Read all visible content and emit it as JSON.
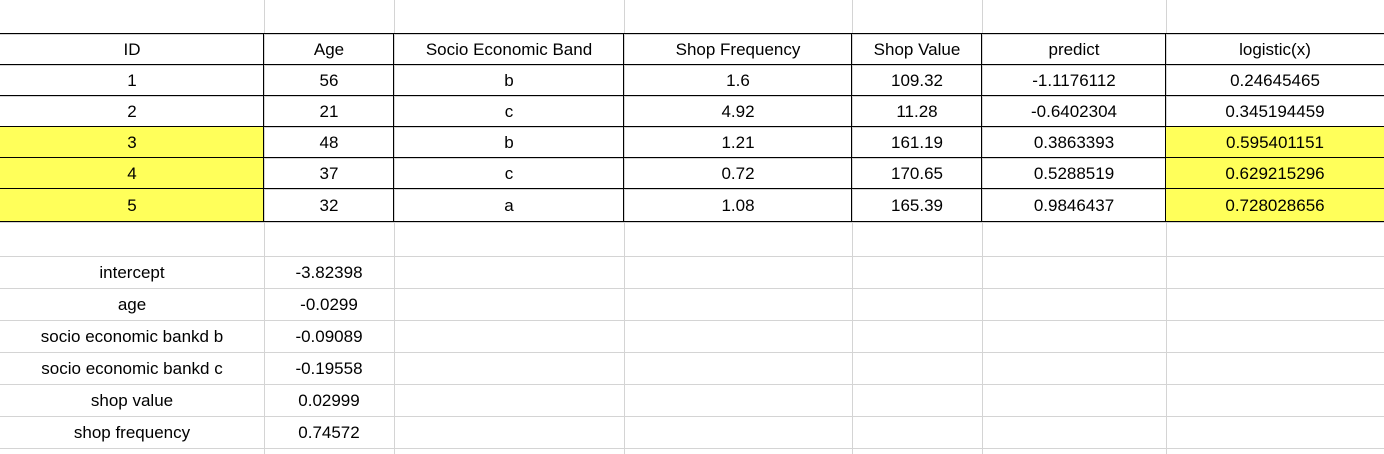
{
  "table": {
    "headers": [
      "ID",
      "Age",
      "Socio Economic Band",
      "Shop Frequency",
      "Shop Value",
      "predict",
      "logistic(x)"
    ],
    "rows": [
      [
        "1",
        "56",
        "b",
        "1.6",
        "109.32",
        "-1.1176112",
        "0.24645465"
      ],
      [
        "2",
        "21",
        "c",
        "4.92",
        "11.28",
        "-0.6402304",
        "0.345194459"
      ],
      [
        "3",
        "48",
        "b",
        "1.21",
        "161.19",
        "0.3863393",
        "0.595401151"
      ],
      [
        "4",
        "37",
        "c",
        "0.72",
        "170.65",
        "0.5288519",
        "0.629215296"
      ],
      [
        "5",
        "32",
        "a",
        "1.08",
        "165.39",
        "0.9846437",
        "0.728028656"
      ]
    ],
    "highlighted_rows": [
      2,
      3,
      4
    ],
    "highlighted_columns": [
      0,
      6
    ]
  },
  "coefficients": [
    {
      "label": "intercept",
      "value": "-3.82398"
    },
    {
      "label": "age",
      "value": "-0.0299"
    },
    {
      "label": "socio economic bankd b",
      "value": "-0.09089"
    },
    {
      "label": "socio economic bankd c",
      "value": "-0.19558"
    },
    {
      "label": "shop value",
      "value": "0.02999"
    },
    {
      "label": "shop frequency",
      "value": "0.74572"
    }
  ],
  "colors": {
    "highlight": "#ffff5a",
    "gridline": "#d4d4d4",
    "border": "#000000"
  }
}
